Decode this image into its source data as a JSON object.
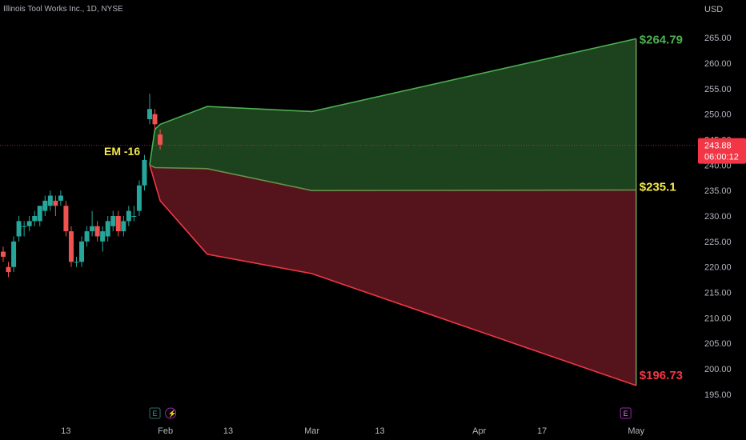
{
  "header": {
    "symbol_line": "Illinois Tool Works Inc., 1D, NYSE"
  },
  "axis": {
    "currency": "USD"
  },
  "price_label": {
    "value": "243.88",
    "countdown": "06:00:12"
  },
  "annotations": {
    "em_label": "EM -16",
    "upper": "$264.79",
    "mid": "$235.1",
    "lower": "$196.73"
  },
  "events": {
    "e1": "E",
    "e2": "⚡",
    "e3": "E"
  },
  "colors": {
    "bg": "#000000",
    "up": "#26a69a",
    "down": "#ef5350",
    "green_line": "#4caf50",
    "red_line": "#f23645",
    "green_fill": "#1e4620",
    "red_fill": "#5a151d",
    "label_yellow": "#f5e94a",
    "axis_text": "#b2b5be",
    "last_price_bg": "#f23645",
    "event_e": "#2e6e6a",
    "event_purple": "#9c27b0"
  },
  "chart_data": {
    "type": "candlestick",
    "y_axis": {
      "ylim": [
        192,
        268
      ],
      "ticks": [
        "195.00",
        "200.00",
        "205.00",
        "210.00",
        "215.00",
        "220.00",
        "225.00",
        "230.00",
        "235.00",
        "240.00",
        "245.00",
        "250.00",
        "255.00",
        "260.00",
        "265.00"
      ],
      "tick_values": [
        195,
        200,
        205,
        210,
        215,
        220,
        225,
        230,
        235,
        240,
        245,
        250,
        255,
        260,
        265
      ]
    },
    "x_axis": {
      "ticks": [
        "13",
        "Feb",
        "13",
        "Mar",
        "13",
        "Apr",
        "17",
        "May"
      ],
      "tick_days": [
        12,
        31,
        43,
        59,
        72,
        91,
        103,
        121
      ]
    },
    "x_range_days": [
      0,
      127
    ],
    "candles": [
      {
        "d": 0,
        "o": 223,
        "h": 224,
        "l": 221,
        "c": 222
      },
      {
        "d": 1,
        "o": 220,
        "h": 221,
        "l": 218,
        "c": 219
      },
      {
        "d": 2,
        "o": 220,
        "h": 226,
        "l": 219,
        "c": 225
      },
      {
        "d": 3,
        "o": 226,
        "h": 230,
        "l": 225,
        "c": 229
      },
      {
        "d": 4,
        "o": 228,
        "h": 229,
        "l": 226,
        "c": 228
      },
      {
        "d": 5,
        "o": 228,
        "h": 230,
        "l": 227,
        "c": 229
      },
      {
        "d": 6,
        "o": 229,
        "h": 231,
        "l": 228,
        "c": 230
      },
      {
        "d": 7,
        "o": 229,
        "h": 232,
        "l": 228,
        "c": 232
      },
      {
        "d": 8,
        "o": 231,
        "h": 234,
        "l": 230,
        "c": 233
      },
      {
        "d": 9,
        "o": 232,
        "h": 235,
        "l": 231,
        "c": 234
      },
      {
        "d": 10,
        "o": 233,
        "h": 234,
        "l": 230,
        "c": 232
      },
      {
        "d": 11,
        "o": 233,
        "h": 235,
        "l": 232,
        "c": 234
      },
      {
        "d": 12,
        "o": 232,
        "h": 233,
        "l": 226,
        "c": 227
      },
      {
        "d": 13,
        "o": 227,
        "h": 228,
        "l": 220,
        "c": 221
      },
      {
        "d": 14,
        "o": 221,
        "h": 222,
        "l": 220,
        "c": 221
      },
      {
        "d": 15,
        "o": 221,
        "h": 226,
        "l": 220,
        "c": 225
      },
      {
        "d": 16,
        "o": 225,
        "h": 228,
        "l": 224,
        "c": 227
      },
      {
        "d": 17,
        "o": 227,
        "h": 231,
        "l": 226,
        "c": 228
      },
      {
        "d": 18,
        "o": 228,
        "h": 229,
        "l": 225,
        "c": 226
      },
      {
        "d": 19,
        "o": 225,
        "h": 228,
        "l": 223,
        "c": 227
      },
      {
        "d": 20,
        "o": 226,
        "h": 230,
        "l": 225,
        "c": 229
      },
      {
        "d": 21,
        "o": 228,
        "h": 231,
        "l": 227,
        "c": 230
      },
      {
        "d": 22,
        "o": 230,
        "h": 231,
        "l": 226,
        "c": 227
      },
      {
        "d": 23,
        "o": 227,
        "h": 230,
        "l": 226,
        "c": 229
      },
      {
        "d": 24,
        "o": 229,
        "h": 232,
        "l": 228,
        "c": 231
      },
      {
        "d": 25,
        "o": 230,
        "h": 232,
        "l": 229,
        "c": 230
      },
      {
        "d": 26,
        "o": 231,
        "h": 237,
        "l": 230,
        "c": 236
      },
      {
        "d": 27,
        "o": 236,
        "h": 242,
        "l": 235,
        "c": 241
      },
      {
        "d": 28,
        "o": 249,
        "h": 254,
        "l": 248,
        "c": 251
      },
      {
        "d": 29,
        "o": 250,
        "h": 251,
        "l": 247,
        "c": 248
      },
      {
        "d": 30,
        "o": 246,
        "h": 247,
        "l": 243,
        "c": 244
      }
    ],
    "expected_move": {
      "upper": [
        [
          28,
          240
        ],
        [
          29,
          247
        ],
        [
          30,
          248
        ],
        [
          39,
          251.5
        ],
        [
          59,
          250.5
        ],
        [
          121,
          264.79
        ]
      ],
      "mid": [
        [
          28,
          240
        ],
        [
          29,
          239.5
        ],
        [
          39,
          239.3
        ],
        [
          59,
          235
        ],
        [
          121,
          235.1
        ]
      ],
      "lower": [
        [
          28,
          240
        ],
        [
          30,
          233
        ],
        [
          39,
          222.5
        ],
        [
          59,
          218.7
        ],
        [
          121,
          196.73
        ]
      ]
    },
    "last_price": 243.88,
    "event_days": [
      29,
      32,
      119
    ]
  }
}
